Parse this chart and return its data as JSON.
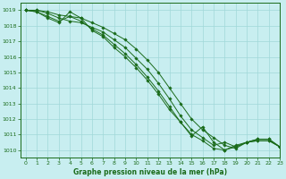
{
  "title": "Graphe pression niveau de la mer (hPa)",
  "bg_color": "#c8eef0",
  "grid_color": "#a0d8d8",
  "line_color": "#1a6b1a",
  "marker_color": "#1a6b1a",
  "xlim": [
    -0.5,
    23
  ],
  "ylim": [
    1009.5,
    1019.5
  ],
  "xticks": [
    0,
    1,
    2,
    3,
    4,
    5,
    6,
    7,
    8,
    9,
    10,
    11,
    12,
    13,
    14,
    15,
    16,
    17,
    18,
    19,
    20,
    21,
    22,
    23
  ],
  "yticks": [
    1010,
    1011,
    1012,
    1013,
    1014,
    1015,
    1016,
    1017,
    1018,
    1019
  ],
  "series": [
    [
      1019.0,
      1019.0,
      1018.9,
      1018.7,
      1018.6,
      1018.5,
      1018.2,
      1017.9,
      1017.5,
      1017.1,
      1016.5,
      1015.8,
      1015.0,
      1014.0,
      1013.0,
      1012.0,
      1011.3,
      1010.8,
      1010.3,
      1010.1,
      1010.5,
      1010.6,
      1010.6,
      1010.2
    ],
    [
      1019.0,
      1019.0,
      1018.8,
      1018.5,
      1018.3,
      1018.2,
      1017.9,
      1017.6,
      1017.1,
      1016.6,
      1015.9,
      1015.2,
      1014.3,
      1013.3,
      1012.2,
      1011.3,
      1010.8,
      1010.3,
      1010.5,
      1010.2,
      1010.5,
      1010.6,
      1010.6,
      1010.2
    ],
    [
      1019.0,
      1018.9,
      1018.6,
      1018.3,
      1018.6,
      1018.3,
      1017.8,
      1017.4,
      1016.8,
      1016.2,
      1015.5,
      1014.7,
      1013.8,
      1012.8,
      1011.8,
      1011.0,
      1010.6,
      1010.1,
      1010.0,
      1010.3,
      1010.5,
      1010.7,
      1010.7,
      1010.2
    ],
    [
      1019.0,
      1018.9,
      1018.5,
      1018.2,
      1018.9,
      1018.5,
      1017.7,
      1017.3,
      1016.6,
      1016.0,
      1015.3,
      1014.5,
      1013.6,
      1012.6,
      1011.8,
      1010.9,
      1011.5,
      1010.5,
      1010.0,
      1010.2,
      1010.5,
      1010.7,
      1010.7,
      1010.2
    ]
  ]
}
